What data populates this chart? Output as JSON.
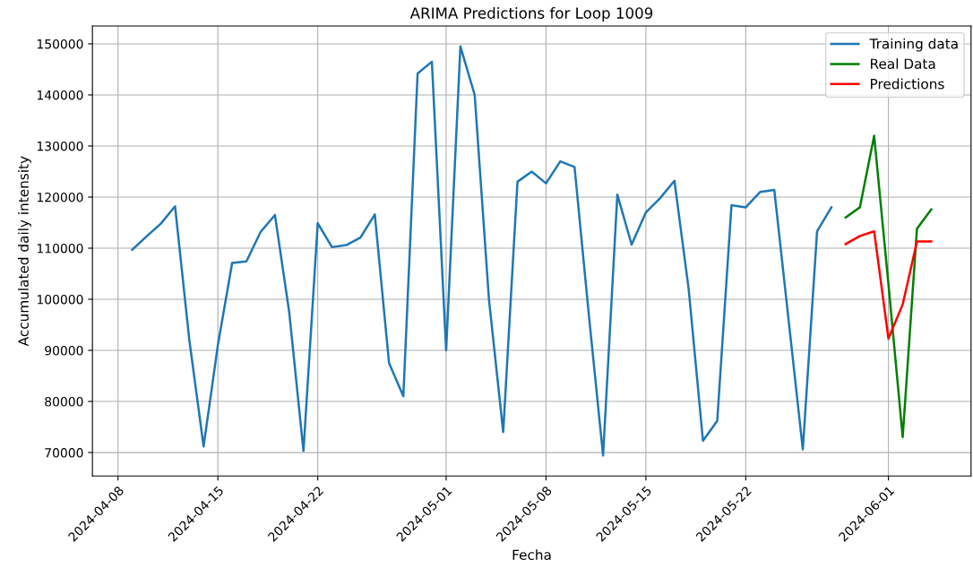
{
  "chart_data": {
    "type": "line",
    "title": "ARIMA Predictions for Loop 1009",
    "xlabel": "Fecha",
    "ylabel": "Accumulated daily intensity",
    "xlim": [
      "2024-04-06T05:00",
      "2024-06-06T19:00"
    ],
    "ylim": [
      65400,
      153500
    ],
    "xticks": [
      "2024-04-08",
      "2024-04-15",
      "2024-04-22",
      "2024-05-01",
      "2024-05-08",
      "2024-05-15",
      "2024-05-22",
      "2024-06-01"
    ],
    "yticks": [
      70000,
      80000,
      90000,
      100000,
      110000,
      120000,
      130000,
      140000,
      150000
    ],
    "grid": true,
    "legend": "top right",
    "series": [
      {
        "name": "Training data",
        "color": "#1f77b4",
        "x": [
          "2024-04-09",
          "2024-04-10",
          "2024-04-11",
          "2024-04-12",
          "2024-04-13",
          "2024-04-14",
          "2024-04-15",
          "2024-04-16",
          "2024-04-17",
          "2024-04-18",
          "2024-04-19",
          "2024-04-20",
          "2024-04-21",
          "2024-04-22",
          "2024-04-23",
          "2024-04-24",
          "2024-04-25",
          "2024-04-26",
          "2024-04-27",
          "2024-04-28",
          "2024-04-29",
          "2024-04-30",
          "2024-05-01",
          "2024-05-02",
          "2024-05-03",
          "2024-05-04",
          "2024-05-05",
          "2024-05-06",
          "2024-05-07",
          "2024-05-08",
          "2024-05-09",
          "2024-05-10",
          "2024-05-11",
          "2024-05-12",
          "2024-05-13",
          "2024-05-14",
          "2024-05-15",
          "2024-05-16",
          "2024-05-17",
          "2024-05-18",
          "2024-05-19",
          "2024-05-20",
          "2024-05-21",
          "2024-05-22",
          "2024-05-23",
          "2024-05-24",
          "2024-05-25",
          "2024-05-26",
          "2024-05-27",
          "2024-05-28"
        ],
        "values": [
          109700,
          112300,
          114800,
          118200,
          92000,
          71200,
          91000,
          107100,
          107400,
          113200,
          116500,
          97500,
          70300,
          114900,
          110200,
          110600,
          112100,
          116600,
          87500,
          81000,
          144200,
          146500,
          90000,
          149500,
          140000,
          100000,
          74000,
          123000,
          125000,
          122700,
          127000,
          125900,
          97000,
          69400,
          120500,
          110700,
          117000,
          119800,
          123200,
          102000,
          72300,
          76200,
          118400,
          118000,
          121000,
          121400,
          96000,
          70600,
          113300,
          118000
        ]
      },
      {
        "name": "Real Data",
        "color": "#008000",
        "x": [
          "2024-05-29",
          "2024-05-30",
          "2024-05-31",
          "2024-06-01",
          "2024-06-02",
          "2024-06-03",
          "2024-06-04"
        ],
        "values": [
          116000,
          118000,
          132000,
          103000,
          73000,
          113800,
          117600
        ]
      },
      {
        "name": "Predictions",
        "color": "#ff0000",
        "x": [
          "2024-05-29",
          "2024-05-30",
          "2024-05-31",
          "2024-06-01",
          "2024-06-02",
          "2024-06-03",
          "2024-06-04"
        ],
        "values": [
          110800,
          112400,
          113300,
          92300,
          99000,
          111300,
          111300
        ]
      }
    ]
  }
}
